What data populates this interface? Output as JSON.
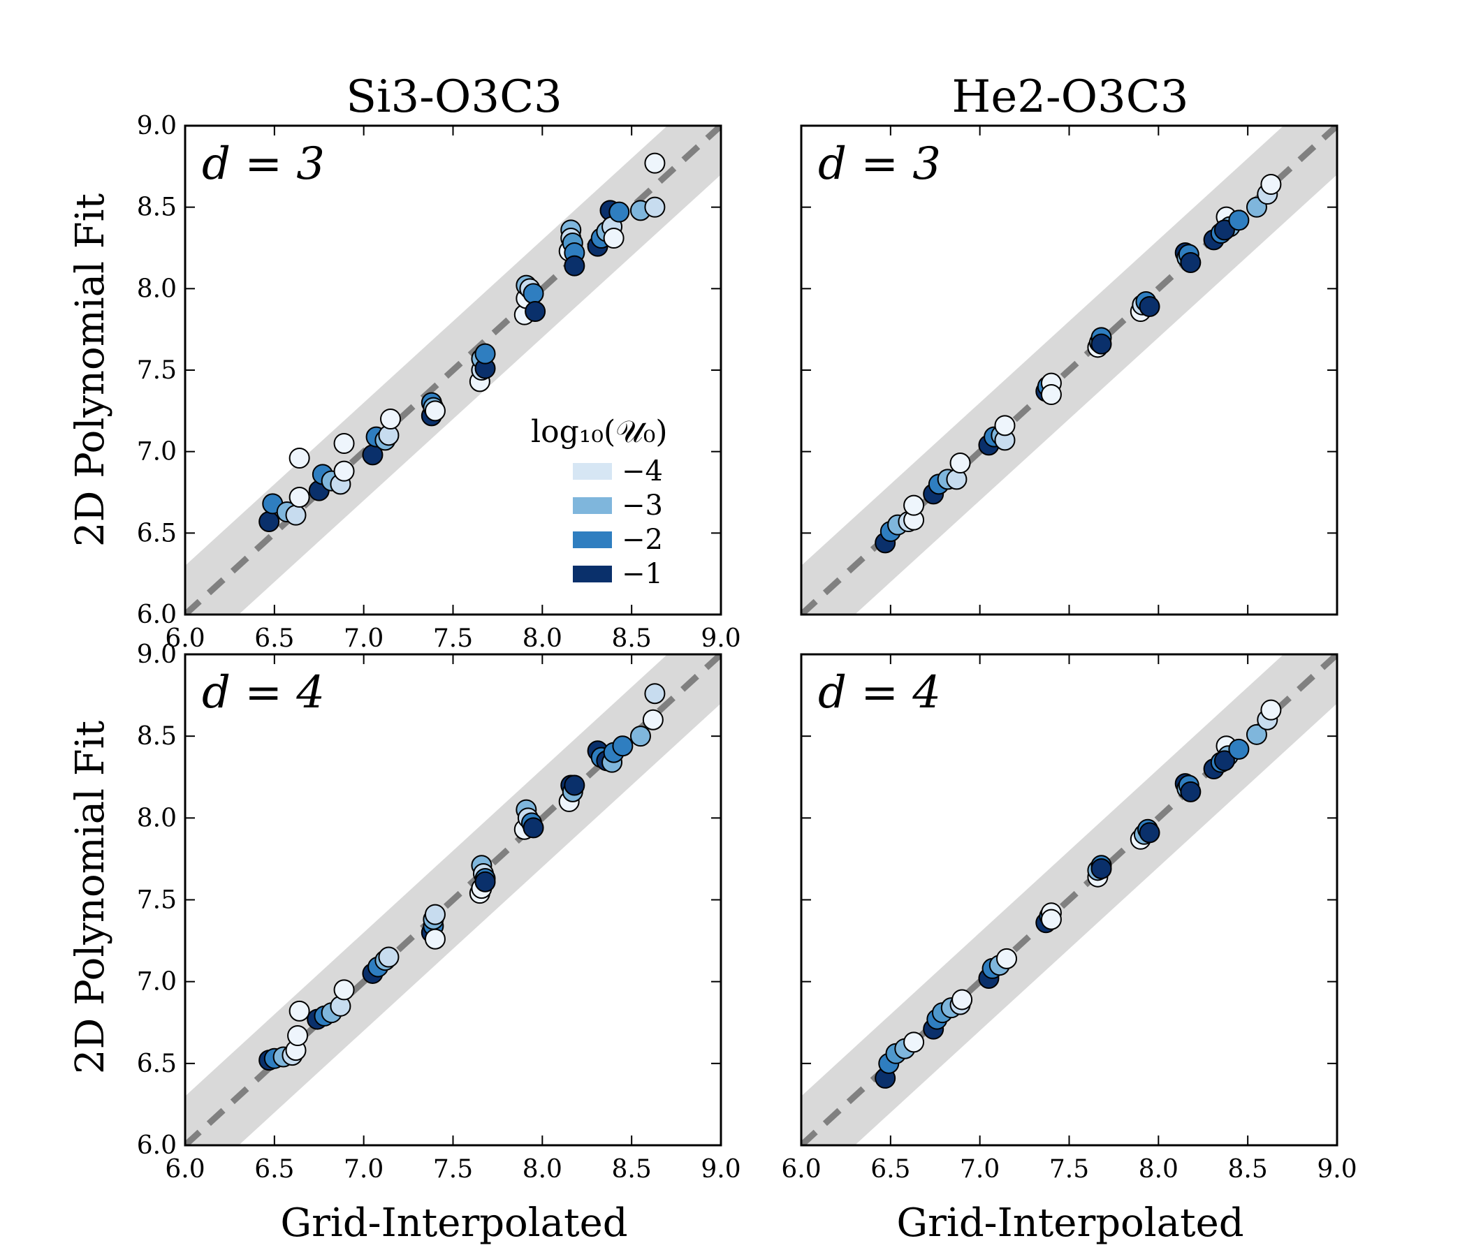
{
  "figure": {
    "column_titles": [
      "Si3-O3C3",
      "He2-O3C3"
    ],
    "row_labels": [
      "d = 3",
      "d = 4"
    ],
    "xlabel": "Grid-Interpolated",
    "ylabel": "2D Polynomial Fit",
    "legend": {
      "title": "log₁₀(𝒰₀)",
      "entries": [
        {
          "label": "−4",
          "color": "#d6e6f4"
        },
        {
          "label": "−3",
          "color": "#7fb6dc"
        },
        {
          "label": "−2",
          "color": "#2f7ec0"
        },
        {
          "label": "−1",
          "color": "#0a306b"
        }
      ]
    },
    "colors": {
      "band": "#d9d9d9",
      "one_to_one_line": "#808080",
      "u_-4": "#eef5fc",
      "u_-3.5": "#c7dcef",
      "u_-3": "#7fb6dc",
      "u_-2.5": "#4f98cc",
      "u_-2": "#2f7ec0",
      "u_-1.5": "#1a5ea6",
      "u_-1": "#0a306b"
    }
  },
  "chart_data": [
    {
      "type": "scatter",
      "panel": "Si3-O3C3, d = 3",
      "title": "Si3-O3C3",
      "annotation": "d = 3",
      "xlabel": "",
      "ylabel": "2D Polynomial Fit",
      "xlim": [
        6.0,
        9.0
      ],
      "ylim": [
        6.0,
        9.0
      ],
      "xticks": [
        "6.0",
        "6.5",
        "7.0",
        "7.5",
        "8.0",
        "8.5",
        "9.0"
      ],
      "yticks": [
        "6.0",
        "6.5",
        "7.0",
        "7.5",
        "8.0",
        "8.5",
        "9.0"
      ],
      "one_to_one_line": true,
      "band_halfwidth": 0.3,
      "legend_placement": "center-right",
      "points": [
        {
          "x": 6.47,
          "y": 6.57,
          "u": -1
        },
        {
          "x": 6.49,
          "y": 6.68,
          "u": -2
        },
        {
          "x": 6.57,
          "y": 6.63,
          "u": -3
        },
        {
          "x": 6.62,
          "y": 6.61,
          "u": -3.5
        },
        {
          "x": 6.64,
          "y": 6.72,
          "u": -4
        },
        {
          "x": 6.64,
          "y": 6.96,
          "u": -4
        },
        {
          "x": 6.75,
          "y": 6.76,
          "u": -1
        },
        {
          "x": 6.77,
          "y": 6.86,
          "u": -2
        },
        {
          "x": 6.82,
          "y": 6.82,
          "u": -3
        },
        {
          "x": 6.87,
          "y": 6.8,
          "u": -3.5
        },
        {
          "x": 6.89,
          "y": 6.88,
          "u": -4
        },
        {
          "x": 6.89,
          "y": 7.05,
          "u": -4
        },
        {
          "x": 7.05,
          "y": 6.98,
          "u": -1
        },
        {
          "x": 7.07,
          "y": 7.09,
          "u": -2
        },
        {
          "x": 7.12,
          "y": 7.07,
          "u": -3
        },
        {
          "x": 7.14,
          "y": 7.1,
          "u": -3.5
        },
        {
          "x": 7.15,
          "y": 7.2,
          "u": -4
        },
        {
          "x": 7.38,
          "y": 7.22,
          "u": -1
        },
        {
          "x": 7.38,
          "y": 7.3,
          "u": -2
        },
        {
          "x": 7.39,
          "y": 7.27,
          "u": -3
        },
        {
          "x": 7.4,
          "y": 7.25,
          "u": -4
        },
        {
          "x": 7.65,
          "y": 7.43,
          "u": -4
        },
        {
          "x": 7.66,
          "y": 7.5,
          "u": -3.5
        },
        {
          "x": 7.66,
          "y": 7.57,
          "u": -3
        },
        {
          "x": 7.68,
          "y": 7.51,
          "u": -1
        },
        {
          "x": 7.68,
          "y": 7.6,
          "u": -2
        },
        {
          "x": 7.9,
          "y": 7.84,
          "u": -4
        },
        {
          "x": 7.91,
          "y": 7.94,
          "u": -4
        },
        {
          "x": 7.91,
          "y": 8.02,
          "u": -3
        },
        {
          "x": 7.93,
          "y": 8.0,
          "u": -3.5
        },
        {
          "x": 7.95,
          "y": 7.97,
          "u": -2
        },
        {
          "x": 7.96,
          "y": 7.86,
          "u": -1
        },
        {
          "x": 8.15,
          "y": 8.23,
          "u": -4
        },
        {
          "x": 8.16,
          "y": 8.36,
          "u": -3
        },
        {
          "x": 8.16,
          "y": 8.31,
          "u": -3.5
        },
        {
          "x": 8.17,
          "y": 8.28,
          "u": -2.5
        },
        {
          "x": 8.18,
          "y": 8.22,
          "u": -2
        },
        {
          "x": 8.18,
          "y": 8.14,
          "u": -1
        },
        {
          "x": 8.31,
          "y": 8.26,
          "u": -1
        },
        {
          "x": 8.33,
          "y": 8.31,
          "u": -2
        },
        {
          "x": 8.36,
          "y": 8.35,
          "u": -3
        },
        {
          "x": 8.38,
          "y": 8.48,
          "u": -1
        },
        {
          "x": 8.39,
          "y": 8.38,
          "u": -3.5
        },
        {
          "x": 8.4,
          "y": 8.31,
          "u": -4
        },
        {
          "x": 8.43,
          "y": 8.47,
          "u": -2
        },
        {
          "x": 8.55,
          "y": 8.48,
          "u": -3
        },
        {
          "x": 8.63,
          "y": 8.5,
          "u": -3.5
        },
        {
          "x": 8.63,
          "y": 8.77,
          "u": -4
        }
      ]
    },
    {
      "type": "scatter",
      "panel": "He2-O3C3, d = 3",
      "title": "He2-O3C3",
      "annotation": "d = 3",
      "xlabel": "",
      "ylabel": "",
      "xlim": [
        6.0,
        9.0
      ],
      "ylim": [
        6.0,
        9.0
      ],
      "one_to_one_line": true,
      "band_halfwidth": 0.3,
      "points": [
        {
          "x": 6.47,
          "y": 6.44,
          "u": -1
        },
        {
          "x": 6.5,
          "y": 6.51,
          "u": -2
        },
        {
          "x": 6.54,
          "y": 6.55,
          "u": -3
        },
        {
          "x": 6.6,
          "y": 6.57,
          "u": -3.5
        },
        {
          "x": 6.63,
          "y": 6.58,
          "u": -4
        },
        {
          "x": 6.63,
          "y": 6.67,
          "u": -4
        },
        {
          "x": 6.74,
          "y": 6.74,
          "u": -1
        },
        {
          "x": 6.77,
          "y": 6.8,
          "u": -2
        },
        {
          "x": 6.82,
          "y": 6.83,
          "u": -3
        },
        {
          "x": 6.87,
          "y": 6.83,
          "u": -3.5
        },
        {
          "x": 6.89,
          "y": 6.93,
          "u": -4
        },
        {
          "x": 7.05,
          "y": 7.04,
          "u": -1
        },
        {
          "x": 7.08,
          "y": 7.09,
          "u": -2
        },
        {
          "x": 7.12,
          "y": 7.1,
          "u": -3
        },
        {
          "x": 7.14,
          "y": 7.07,
          "u": -3.5
        },
        {
          "x": 7.14,
          "y": 7.16,
          "u": -4
        },
        {
          "x": 7.37,
          "y": 7.37,
          "u": -1
        },
        {
          "x": 7.38,
          "y": 7.4,
          "u": -2
        },
        {
          "x": 7.4,
          "y": 7.42,
          "u": -4
        },
        {
          "x": 7.4,
          "y": 7.35,
          "u": -4
        },
        {
          "x": 7.66,
          "y": 7.64,
          "u": -4
        },
        {
          "x": 7.67,
          "y": 7.67,
          "u": -3
        },
        {
          "x": 7.68,
          "y": 7.7,
          "u": -2
        },
        {
          "x": 7.68,
          "y": 7.66,
          "u": -1
        },
        {
          "x": 7.9,
          "y": 7.86,
          "u": -4
        },
        {
          "x": 7.91,
          "y": 7.9,
          "u": -3.5
        },
        {
          "x": 7.93,
          "y": 7.92,
          "u": -2
        },
        {
          "x": 7.95,
          "y": 7.89,
          "u": -1
        },
        {
          "x": 8.15,
          "y": 8.22,
          "u": -1
        },
        {
          "x": 8.16,
          "y": 8.19,
          "u": -3
        },
        {
          "x": 8.17,
          "y": 8.21,
          "u": -2
        },
        {
          "x": 8.18,
          "y": 8.16,
          "u": -1
        },
        {
          "x": 8.31,
          "y": 8.3,
          "u": -1
        },
        {
          "x": 8.35,
          "y": 8.34,
          "u": -2
        },
        {
          "x": 8.38,
          "y": 8.44,
          "u": -4
        },
        {
          "x": 8.4,
          "y": 8.38,
          "u": -3
        },
        {
          "x": 8.37,
          "y": 8.36,
          "u": -1
        },
        {
          "x": 8.45,
          "y": 8.42,
          "u": -2
        },
        {
          "x": 8.55,
          "y": 8.5,
          "u": -3
        },
        {
          "x": 8.61,
          "y": 8.58,
          "u": -3.5
        },
        {
          "x": 8.63,
          "y": 8.64,
          "u": -4
        }
      ]
    },
    {
      "type": "scatter",
      "panel": "Si3-O3C3, d = 4",
      "title": "",
      "annotation": "d = 4",
      "xlabel": "Grid-Interpolated",
      "ylabel": "2D Polynomial Fit",
      "xlim": [
        6.0,
        9.0
      ],
      "ylim": [
        6.0,
        9.0
      ],
      "xticks": [
        "6.0",
        "6.5",
        "7.0",
        "7.5",
        "8.0",
        "8.5",
        "9.0"
      ],
      "yticks": [
        "6.0",
        "6.5",
        "7.0",
        "7.5",
        "8.0",
        "8.5",
        "9.0"
      ],
      "one_to_one_line": true,
      "band_halfwidth": 0.3,
      "points": [
        {
          "x": 6.47,
          "y": 6.52,
          "u": -1
        },
        {
          "x": 6.5,
          "y": 6.53,
          "u": -2
        },
        {
          "x": 6.55,
          "y": 6.54,
          "u": -3
        },
        {
          "x": 6.6,
          "y": 6.55,
          "u": -3.5
        },
        {
          "x": 6.62,
          "y": 6.58,
          "u": -4
        },
        {
          "x": 6.63,
          "y": 6.67,
          "u": -4
        },
        {
          "x": 6.64,
          "y": 6.82,
          "u": -4
        },
        {
          "x": 6.74,
          "y": 6.77,
          "u": -1
        },
        {
          "x": 6.78,
          "y": 6.79,
          "u": -2
        },
        {
          "x": 6.82,
          "y": 6.81,
          "u": -3
        },
        {
          "x": 6.87,
          "y": 6.85,
          "u": -3.5
        },
        {
          "x": 6.89,
          "y": 6.95,
          "u": -4
        },
        {
          "x": 7.05,
          "y": 7.05,
          "u": -1
        },
        {
          "x": 7.08,
          "y": 7.09,
          "u": -2
        },
        {
          "x": 7.12,
          "y": 7.13,
          "u": -3
        },
        {
          "x": 7.14,
          "y": 7.15,
          "u": -3.5
        },
        {
          "x": 7.38,
          "y": 7.3,
          "u": -1
        },
        {
          "x": 7.39,
          "y": 7.34,
          "u": -2
        },
        {
          "x": 7.39,
          "y": 7.38,
          "u": -3
        },
        {
          "x": 7.4,
          "y": 7.41,
          "u": -3.5
        },
        {
          "x": 7.4,
          "y": 7.26,
          "u": -4
        },
        {
          "x": 7.65,
          "y": 7.54,
          "u": -4
        },
        {
          "x": 7.66,
          "y": 7.57,
          "u": -4
        },
        {
          "x": 7.66,
          "y": 7.71,
          "u": -3
        },
        {
          "x": 7.67,
          "y": 7.66,
          "u": -3.5
        },
        {
          "x": 7.68,
          "y": 7.63,
          "u": -2
        },
        {
          "x": 7.68,
          "y": 7.61,
          "u": -1
        },
        {
          "x": 7.9,
          "y": 7.93,
          "u": -4
        },
        {
          "x": 7.91,
          "y": 8.05,
          "u": -3
        },
        {
          "x": 7.92,
          "y": 8.0,
          "u": -3.5
        },
        {
          "x": 7.94,
          "y": 7.97,
          "u": -2
        },
        {
          "x": 7.95,
          "y": 7.94,
          "u": -1
        },
        {
          "x": 8.15,
          "y": 8.1,
          "u": -4
        },
        {
          "x": 8.16,
          "y": 8.2,
          "u": -1
        },
        {
          "x": 8.17,
          "y": 8.16,
          "u": -3
        },
        {
          "x": 8.18,
          "y": 8.2,
          "u": -1
        },
        {
          "x": 8.31,
          "y": 8.41,
          "u": -1
        },
        {
          "x": 8.33,
          "y": 8.37,
          "u": -2
        },
        {
          "x": 8.36,
          "y": 8.35,
          "u": -1
        },
        {
          "x": 8.39,
          "y": 8.34,
          "u": -3
        },
        {
          "x": 8.4,
          "y": 8.4,
          "u": -2
        },
        {
          "x": 8.45,
          "y": 8.44,
          "u": -2
        },
        {
          "x": 8.55,
          "y": 8.5,
          "u": -3
        },
        {
          "x": 8.62,
          "y": 8.6,
          "u": -4
        },
        {
          "x": 8.63,
          "y": 8.76,
          "u": -3.5
        }
      ]
    },
    {
      "type": "scatter",
      "panel": "He2-O3C3, d = 4",
      "title": "",
      "annotation": "d = 4",
      "xlabel": "Grid-Interpolated",
      "ylabel": "",
      "xlim": [
        6.0,
        9.0
      ],
      "ylim": [
        6.0,
        9.0
      ],
      "xticks": [
        "6.0",
        "6.5",
        "7.0",
        "7.5",
        "8.0",
        "8.5",
        "9.0"
      ],
      "one_to_one_line": true,
      "band_halfwidth": 0.3,
      "points": [
        {
          "x": 6.47,
          "y": 6.41,
          "u": -1
        },
        {
          "x": 6.49,
          "y": 6.5,
          "u": -2
        },
        {
          "x": 6.53,
          "y": 6.56,
          "u": -2.5
        },
        {
          "x": 6.58,
          "y": 6.59,
          "u": -3
        },
        {
          "x": 6.63,
          "y": 6.63,
          "u": -4
        },
        {
          "x": 6.74,
          "y": 6.71,
          "u": -1
        },
        {
          "x": 6.76,
          "y": 6.77,
          "u": -2
        },
        {
          "x": 6.79,
          "y": 6.81,
          "u": -2.5
        },
        {
          "x": 6.84,
          "y": 6.84,
          "u": -3
        },
        {
          "x": 6.89,
          "y": 6.86,
          "u": -3.5
        },
        {
          "x": 6.9,
          "y": 6.89,
          "u": -4
        },
        {
          "x": 7.05,
          "y": 7.02,
          "u": -1
        },
        {
          "x": 7.07,
          "y": 7.08,
          "u": -2
        },
        {
          "x": 7.11,
          "y": 7.1,
          "u": -3
        },
        {
          "x": 7.15,
          "y": 7.14,
          "u": -4
        },
        {
          "x": 7.37,
          "y": 7.36,
          "u": -1
        },
        {
          "x": 7.39,
          "y": 7.4,
          "u": -2
        },
        {
          "x": 7.4,
          "y": 7.42,
          "u": -4
        },
        {
          "x": 7.4,
          "y": 7.38,
          "u": -4
        },
        {
          "x": 7.66,
          "y": 7.64,
          "u": -4
        },
        {
          "x": 7.66,
          "y": 7.68,
          "u": -3
        },
        {
          "x": 7.68,
          "y": 7.71,
          "u": -2
        },
        {
          "x": 7.68,
          "y": 7.69,
          "u": -1
        },
        {
          "x": 7.9,
          "y": 7.87,
          "u": -4
        },
        {
          "x": 7.92,
          "y": 7.9,
          "u": -3
        },
        {
          "x": 7.94,
          "y": 7.93,
          "u": -2
        },
        {
          "x": 7.95,
          "y": 7.91,
          "u": -1
        },
        {
          "x": 8.15,
          "y": 8.21,
          "u": -1
        },
        {
          "x": 8.16,
          "y": 8.18,
          "u": -3
        },
        {
          "x": 8.17,
          "y": 8.2,
          "u": -2
        },
        {
          "x": 8.18,
          "y": 8.16,
          "u": -1
        },
        {
          "x": 8.31,
          "y": 8.3,
          "u": -1
        },
        {
          "x": 8.35,
          "y": 8.34,
          "u": -2
        },
        {
          "x": 8.38,
          "y": 8.44,
          "u": -4
        },
        {
          "x": 8.39,
          "y": 8.38,
          "u": -3
        },
        {
          "x": 8.37,
          "y": 8.35,
          "u": -1
        },
        {
          "x": 8.45,
          "y": 8.42,
          "u": -2
        },
        {
          "x": 8.55,
          "y": 8.51,
          "u": -3
        },
        {
          "x": 8.61,
          "y": 8.6,
          "u": -3.5
        },
        {
          "x": 8.63,
          "y": 8.66,
          "u": -4
        }
      ]
    }
  ]
}
